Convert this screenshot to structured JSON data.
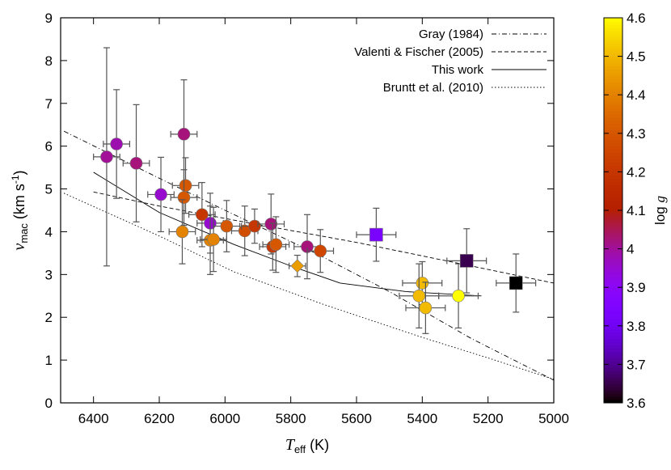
{
  "chart_data": {
    "type": "scatter",
    "xlabel": "T_eff (K)",
    "xlabel_main": "T",
    "xlabel_sub": "eff",
    "xlabel_unit": " (K)",
    "ylabel_main": "v",
    "ylabel_sub": "mac",
    "ylabel_unit": " (km s",
    "ylabel_sup": "-1",
    "ylabel_close": ")",
    "xlim": [
      6500,
      5000
    ],
    "ylim": [
      0,
      9
    ],
    "xticks": [
      6400,
      6200,
      6000,
      5800,
      5600,
      5400,
      5200,
      5000
    ],
    "yticks": [
      0,
      1,
      2,
      3,
      4,
      5,
      6,
      7,
      8,
      9
    ],
    "colorbar": {
      "label": "log g",
      "range": [
        3.6,
        4.6
      ],
      "ticks": [
        "3.6",
        "3.7",
        "3.8",
        "3.9",
        "4",
        "4.1",
        "4.2",
        "4.3",
        "4.4",
        "4.5",
        "4.6"
      ]
    },
    "legend_position": "top-right",
    "lines": [
      {
        "name": "Gray (1984)",
        "style": "dashdot",
        "points": [
          [
            6490,
            6.35
          ],
          [
            6200,
            5.25
          ],
          [
            6000,
            4.5
          ],
          [
            5725,
            3.5
          ],
          [
            5500,
            2.6
          ],
          [
            5250,
            1.5
          ],
          [
            5000,
            0.53
          ]
        ]
      },
      {
        "name": "Valenti & Fischer (2005)",
        "style": "dashed",
        "points": [
          [
            6400,
            4.93
          ],
          [
            6200,
            4.6
          ],
          [
            5972,
            4.27
          ],
          [
            5600,
            3.75
          ],
          [
            5270,
            3.23
          ],
          [
            5000,
            2.8
          ]
        ]
      },
      {
        "name": "This work",
        "style": "solid",
        "points": [
          [
            6400,
            5.39
          ],
          [
            6200,
            4.45
          ],
          [
            5972,
            3.7
          ],
          [
            5800,
            3.2
          ],
          [
            5650,
            2.8
          ],
          [
            5450,
            2.6
          ],
          [
            5220,
            2.5
          ]
        ]
      },
      {
        "name": "Bruntt et al. (2010)",
        "style": "dotted",
        "points": [
          [
            6490,
            4.9
          ],
          [
            6200,
            3.9
          ],
          [
            5972,
            3.06
          ],
          [
            5700,
            2.3
          ],
          [
            5400,
            1.53
          ],
          [
            5200,
            1.05
          ],
          [
            5000,
            0.55
          ]
        ]
      }
    ],
    "points": [
      {
        "t": 6360,
        "v": 5.75,
        "g": 4.0,
        "te": 40,
        "ve": 2.55,
        "m": "circle"
      },
      {
        "t": 6330,
        "v": 6.05,
        "g": 3.98,
        "te": 40,
        "ve": 1.27,
        "m": "circle"
      },
      {
        "t": 6270,
        "v": 5.6,
        "g": 4.02,
        "te": 40,
        "ve": 1.37,
        "m": "circle"
      },
      {
        "t": 6125,
        "v": 6.28,
        "g": 4.02,
        "te": 40,
        "ve": 1.27,
        "m": "circle"
      },
      {
        "t": 6195,
        "v": 4.87,
        "g": 3.95,
        "te": 40,
        "ve": 0.87,
        "m": "circle"
      },
      {
        "t": 6120,
        "v": 5.08,
        "g": 4.3,
        "te": 40,
        "ve": 0.65,
        "m": "circle"
      },
      {
        "t": 6125,
        "v": 4.8,
        "g": 4.3,
        "te": 40,
        "ve": 0.65,
        "m": "circle"
      },
      {
        "t": 6130,
        "v": 4.0,
        "g": 4.4,
        "te": 40,
        "ve": 0.75,
        "m": "circle"
      },
      {
        "t": 6070,
        "v": 4.4,
        "g": 4.2,
        "te": 40,
        "ve": 0.75,
        "m": "circle"
      },
      {
        "t": 6045,
        "v": 4.2,
        "g": 3.95,
        "te": 40,
        "ve": 0.7,
        "m": "circle"
      },
      {
        "t": 6045,
        "v": 3.8,
        "g": 4.4,
        "te": 40,
        "ve": 0.8,
        "m": "circle"
      },
      {
        "t": 6035,
        "v": 3.82,
        "g": 4.4,
        "te": 40,
        "ve": 0.75,
        "m": "circle"
      },
      {
        "t": 5995,
        "v": 4.13,
        "g": 4.3,
        "te": 40,
        "ve": 0.6,
        "m": "circle"
      },
      {
        "t": 5940,
        "v": 4.02,
        "g": 4.27,
        "te": 40,
        "ve": 0.58,
        "m": "circle"
      },
      {
        "t": 5910,
        "v": 4.13,
        "g": 4.2,
        "te": 40,
        "ve": 0.4,
        "m": "circle"
      },
      {
        "t": 5860,
        "v": 4.18,
        "g": 4.02,
        "te": 40,
        "ve": 0.7,
        "m": "circle"
      },
      {
        "t": 5855,
        "v": 3.65,
        "g": 4.2,
        "te": 40,
        "ve": 0.55,
        "m": "circle"
      },
      {
        "t": 5845,
        "v": 3.7,
        "g": 4.3,
        "te": 40,
        "ve": 0.65,
        "m": "circle"
      },
      {
        "t": 5780,
        "v": 3.2,
        "g": 4.45,
        "te": 25,
        "ve": 0.25,
        "m": "diamond"
      },
      {
        "t": 5750,
        "v": 3.65,
        "g": 4.02,
        "te": 40,
        "ve": 0.75,
        "m": "circle"
      },
      {
        "t": 5710,
        "v": 3.55,
        "g": 4.25,
        "te": 40,
        "ve": 0.5,
        "m": "circle"
      },
      {
        "t": 5540,
        "v": 3.93,
        "g": 3.83,
        "te": 60,
        "ve": 0.62,
        "m": "square"
      },
      {
        "t": 5400,
        "v": 2.8,
        "g": 4.5,
        "te": 60,
        "ve": 0.5,
        "m": "circle"
      },
      {
        "t": 5410,
        "v": 2.5,
        "g": 4.5,
        "te": 60,
        "ve": 0.75,
        "m": "circle"
      },
      {
        "t": 5390,
        "v": 2.22,
        "g": 4.5,
        "te": 60,
        "ve": 0.6,
        "m": "circle"
      },
      {
        "t": 5290,
        "v": 2.5,
        "g": 4.6,
        "te": 60,
        "ve": 0.75,
        "m": "circle"
      },
      {
        "t": 5265,
        "v": 3.32,
        "g": 3.65,
        "te": 60,
        "ve": 0.75,
        "m": "square"
      },
      {
        "t": 5115,
        "v": 2.8,
        "g": 3.6,
        "te": 60,
        "ve": 0.68,
        "m": "square"
      }
    ]
  }
}
